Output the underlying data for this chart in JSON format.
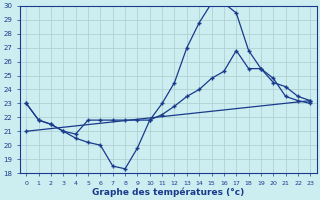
{
  "title": "Graphe des températures (°c)",
  "bg_color": "#cceef0",
  "grid_color": "#aacccc",
  "line_color": "#1a3a8c",
  "marker": "+",
  "xlim": [
    -0.5,
    23.5
  ],
  "ylim": [
    18,
    30
  ],
  "xticks": [
    0,
    1,
    2,
    3,
    4,
    5,
    6,
    7,
    8,
    9,
    10,
    11,
    12,
    13,
    14,
    15,
    16,
    17,
    18,
    19,
    20,
    21,
    22,
    23
  ],
  "yticks": [
    18,
    19,
    20,
    21,
    22,
    23,
    24,
    25,
    26,
    27,
    28,
    29,
    30
  ],
  "series1": {
    "x": [
      0,
      1,
      2,
      3,
      4,
      5,
      6,
      7,
      8,
      9,
      10,
      11,
      12,
      13,
      14,
      15,
      16,
      17,
      18,
      19,
      20,
      21,
      22,
      23
    ],
    "y": [
      23,
      21.8,
      21.5,
      21.0,
      20.5,
      20.2,
      20.0,
      18.5,
      18.3,
      19.8,
      21.8,
      23.0,
      24.5,
      27.0,
      28.8,
      30.2,
      30.2,
      29.5,
      26.8,
      25.5,
      24.8,
      23.5,
      23.2,
      23.0
    ]
  },
  "series2": {
    "x": [
      0,
      1,
      2,
      3,
      4,
      5,
      6,
      7,
      8,
      9,
      10,
      11,
      12,
      13,
      14,
      15,
      16,
      17,
      18,
      19,
      20,
      21,
      22,
      23
    ],
    "y": [
      23,
      21.8,
      21.5,
      21.0,
      20.8,
      21.8,
      21.8,
      21.8,
      21.8,
      21.8,
      21.8,
      22.2,
      22.8,
      23.5,
      24.0,
      24.8,
      25.3,
      26.8,
      25.5,
      25.5,
      24.5,
      24.2,
      23.5,
      23.2
    ]
  },
  "series3": {
    "x": [
      0,
      23
    ],
    "y": [
      21.0,
      23.2
    ]
  }
}
